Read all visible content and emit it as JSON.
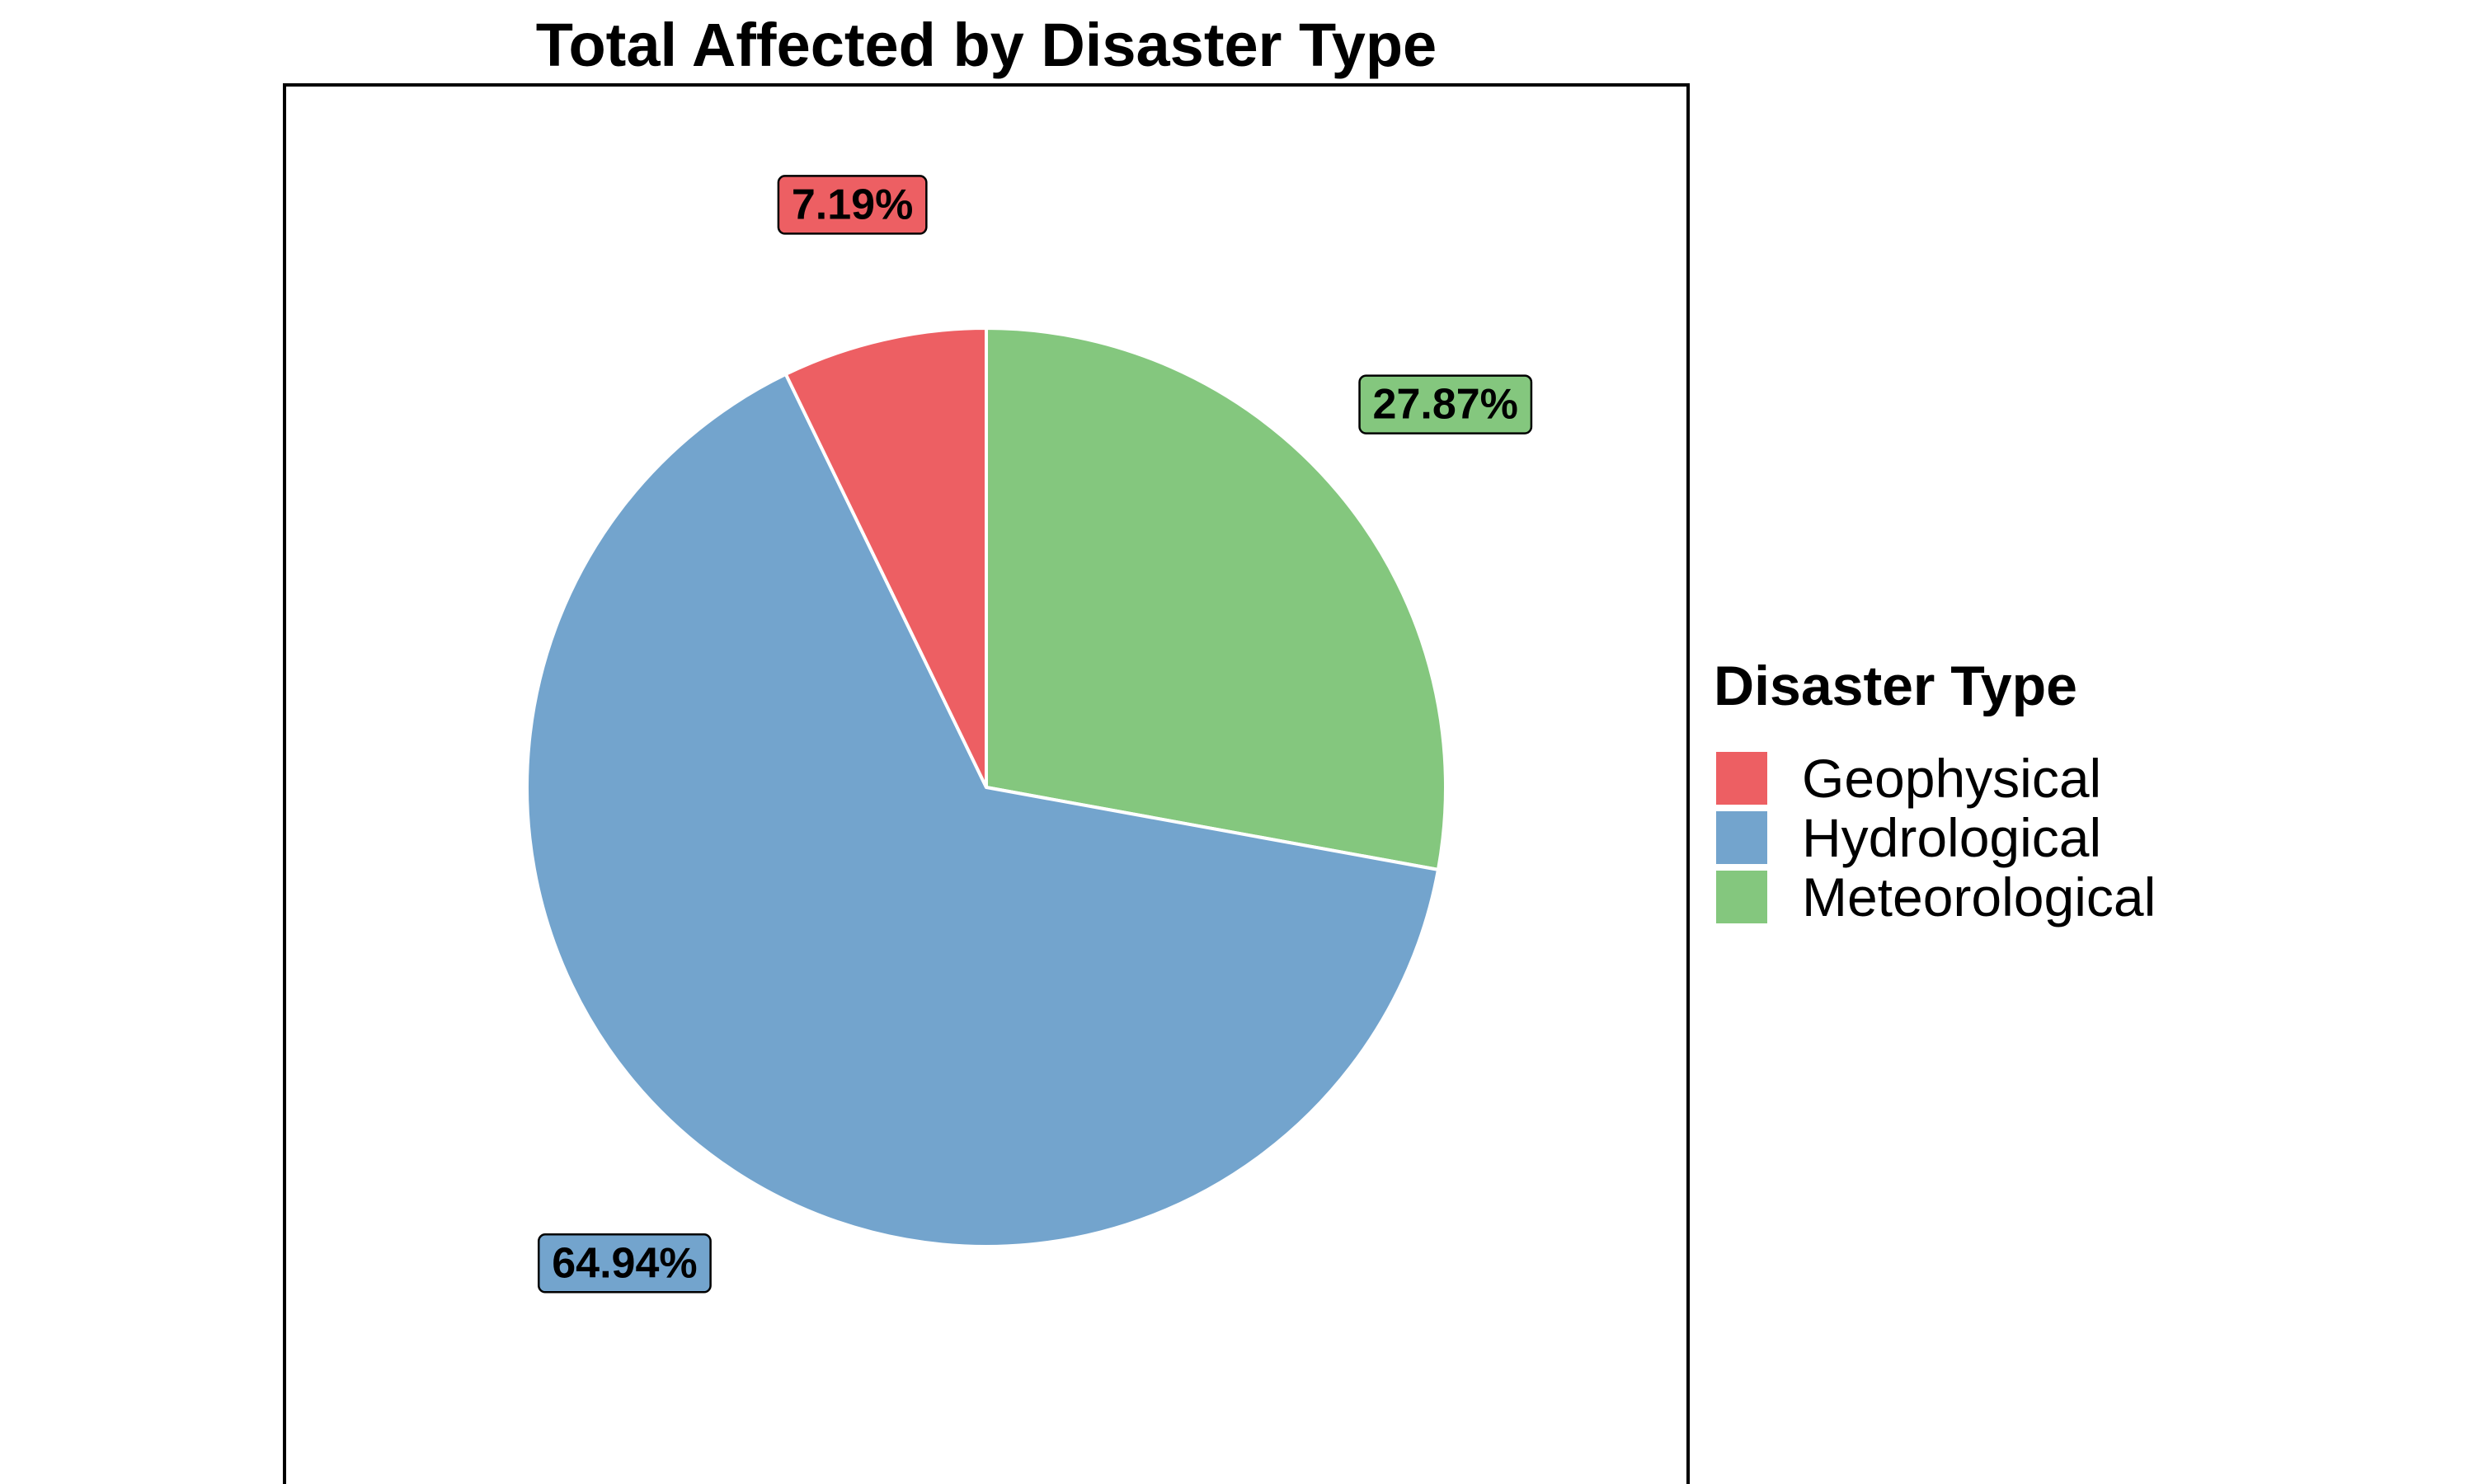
{
  "chart_data": {
    "type": "pie",
    "title": "Total Affected by Disaster Type",
    "legend_title": "Disaster Type",
    "legend_placement": "right",
    "start_angle": "top, clockwise from Meteorological",
    "slices": [
      {
        "name": "Meteorological",
        "value": 27.87,
        "label": "27.87%",
        "color": "#84c77e"
      },
      {
        "name": "Hydrological",
        "value": 64.94,
        "label": "64.94%",
        "color": "#73a4cd"
      },
      {
        "name": "Geophysical",
        "value": 7.19,
        "label": "7.19%",
        "color": "#ed5f63"
      }
    ],
    "legend_order": [
      "Geophysical",
      "Hydrological",
      "Meteorological"
    ],
    "slice_border_color": "#ffffff"
  }
}
